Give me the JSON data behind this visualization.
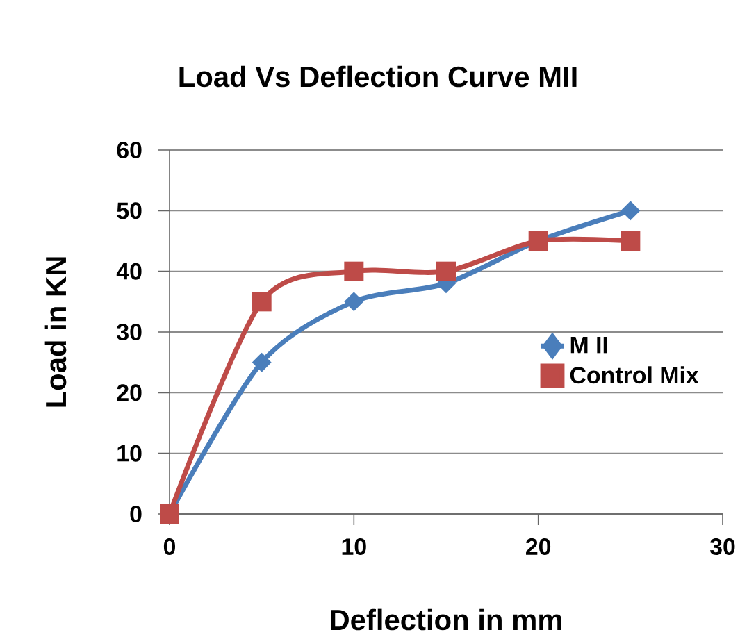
{
  "chart_data": {
    "type": "line",
    "title": "Load Vs Deflection Curve MII",
    "xlabel": "Deflection in mm",
    "ylabel": "Load in KN",
    "x": [
      0,
      5,
      10,
      15,
      20,
      25
    ],
    "series": [
      {
        "name": "M II",
        "color": "#4a7ebb",
        "marker": "diamond",
        "values": [
          0,
          25,
          35,
          38,
          45,
          50
        ]
      },
      {
        "name": "Control Mix",
        "color": "#be4b48",
        "marker": "square",
        "values": [
          0,
          35,
          40,
          40,
          45,
          45
        ]
      }
    ],
    "xlim": [
      0,
      30
    ],
    "xticks": [
      0,
      10,
      20,
      30
    ],
    "ylim": [
      0,
      60
    ],
    "yticks": [
      0,
      10,
      20,
      30,
      40,
      50,
      60
    ],
    "grid": "y",
    "legend": "right"
  }
}
